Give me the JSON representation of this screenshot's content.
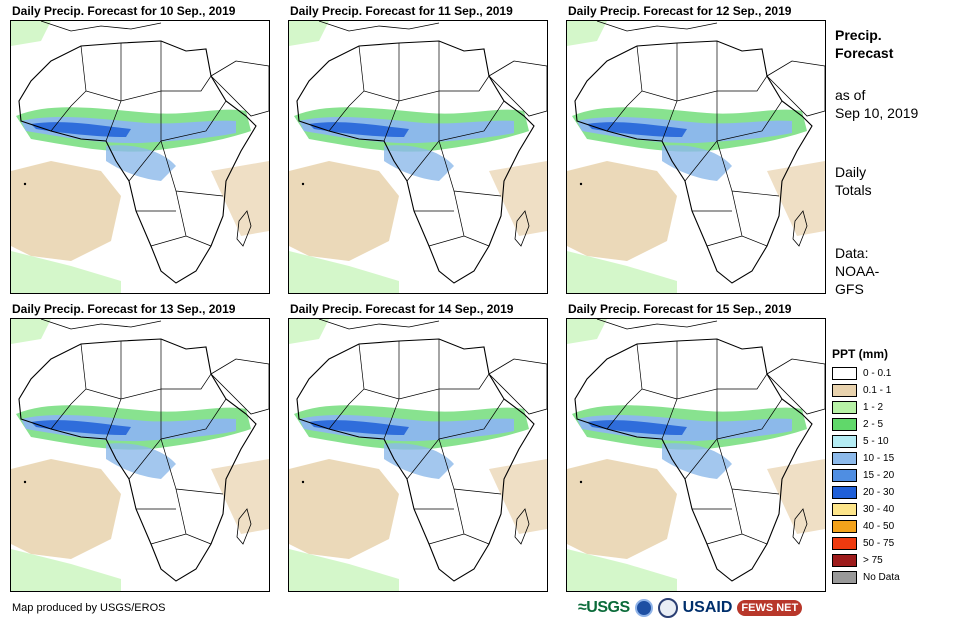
{
  "panels": [
    {
      "title": "Daily Precip. Forecast for 10 Sep., 2019"
    },
    {
      "title": "Daily Precip. Forecast for 11 Sep., 2019"
    },
    {
      "title": "Daily Precip. Forecast for 12 Sep., 2019"
    },
    {
      "title": "Daily Precip. Forecast for 13 Sep., 2019"
    },
    {
      "title": "Daily Precip. Forecast for 14 Sep., 2019"
    },
    {
      "title": "Daily Precip. Forecast for 15 Sep., 2019"
    }
  ],
  "side": {
    "heading_1": "Precip.",
    "heading_2": "Forecast",
    "asof_1": "as of",
    "asof_2": "Sep 10, 2019",
    "totals_1": "Daily",
    "totals_2": "Totals",
    "source_1": "Data:",
    "source_2": "NOAA-",
    "source_3": "GFS"
  },
  "legend": {
    "title": "PPT (mm)",
    "items": [
      {
        "label": "0 - 0.1",
        "color": "#ffffff"
      },
      {
        "label": "0.1 - 1",
        "color": "#e8d2ad"
      },
      {
        "label": "1 - 2",
        "color": "#b7f2a6"
      },
      {
        "label": "2 - 5",
        "color": "#60d86a"
      },
      {
        "label": "5 - 10",
        "color": "#b4ecf4"
      },
      {
        "label": "10 - 15",
        "color": "#8cb9ea"
      },
      {
        "label": "15 - 20",
        "color": "#4f8ee2"
      },
      {
        "label": "20 - 30",
        "color": "#1f5fd8"
      },
      {
        "label": "30 - 40",
        "color": "#fde58a"
      },
      {
        "label": "40 - 50",
        "color": "#f3a21b"
      },
      {
        "label": "50 - 75",
        "color": "#ee3a0f"
      },
      {
        "label": "> 75",
        "color": "#9d1b1b"
      },
      {
        "label": "No Data",
        "color": "#999999"
      }
    ]
  },
  "footer": {
    "credit": "Map produced by USGS/EROS",
    "logo_usgs": "≈USGS",
    "logo_usaid": "USAID",
    "logo_fews": "FEWS NET"
  }
}
